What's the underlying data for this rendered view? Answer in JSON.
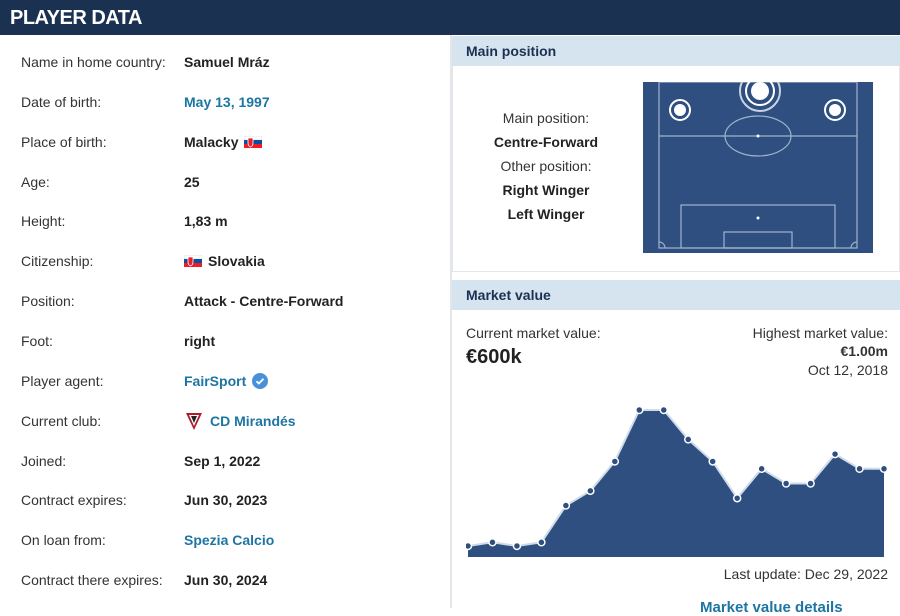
{
  "header": {
    "title": "PLAYER DATA"
  },
  "player_data": {
    "rows": [
      {
        "label": "Name in home country:",
        "value": "Samuel Mráz"
      },
      {
        "label": "Date of birth:",
        "value": "May 13, 1997"
      },
      {
        "label": "Place of birth:",
        "value": "Malacky"
      },
      {
        "label": "Age:",
        "value": "25"
      },
      {
        "label": "Height:",
        "value": "1,83 m"
      },
      {
        "label": "Citizenship:",
        "value": "Slovakia"
      },
      {
        "label": "Position:",
        "value": "Attack - Centre-Forward"
      },
      {
        "label": "Foot:",
        "value": "right"
      },
      {
        "label": "Player agent:",
        "value": "FairSport"
      },
      {
        "label": "Current club:",
        "value": "CD Mirandés"
      },
      {
        "label": "Joined:",
        "value": "Sep 1, 2022"
      },
      {
        "label": "Contract expires:",
        "value": "Jun 30, 2023"
      },
      {
        "label": "On loan from:",
        "value": "Spezia Calcio"
      },
      {
        "label": "Contract there expires:",
        "value": "Jun 30, 2024"
      }
    ]
  },
  "main_position": {
    "title": "Main position",
    "main_label": "Main position:",
    "main": "Centre-Forward",
    "other_label": "Other position:",
    "other": [
      "Right Winger",
      "Left Winger"
    ]
  },
  "market_value": {
    "title": "Market value",
    "current_label": "Current market value:",
    "current": "€600k",
    "highest_label": "Highest market value:",
    "highest": "€1.00m",
    "highest_date": "Oct 12, 2018",
    "chart": {
      "type": "area",
      "values": [
        75000,
        100000,
        75000,
        100000,
        350000,
        450000,
        650000,
        1000000,
        1000000,
        800000,
        650000,
        400000,
        600000,
        500000,
        500000,
        700000,
        600000,
        600000
      ]
    },
    "last_update": "Last update: Dec 29, 2022",
    "link": "Market value details"
  }
}
